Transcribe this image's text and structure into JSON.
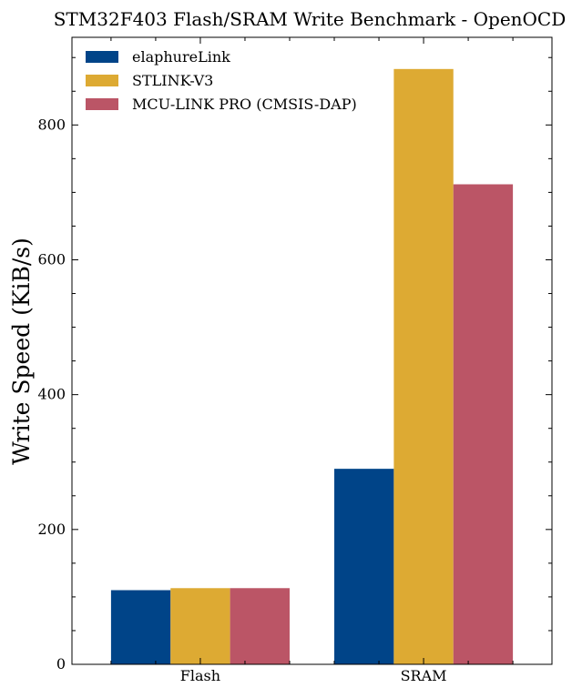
{
  "chart_data": {
    "type": "bar",
    "title": "STM32F403 Flash/SRAM Write Benchmark - OpenOCD",
    "xlabel": "",
    "ylabel": "Write Speed (KiB/s)",
    "categories": [
      "Flash",
      "SRAM"
    ],
    "series": [
      {
        "name": "elaphureLink",
        "color": "#004488",
        "values": [
          110,
          290
        ]
      },
      {
        "name": "STLINK-V3",
        "color": "#DDAA33",
        "values": [
          113,
          883
        ]
      },
      {
        "name": "MCU-LINK PRO (CMSIS-DAP)",
        "color": "#BB5566",
        "values": [
          113,
          712
        ]
      }
    ],
    "ylim": [
      0,
      930
    ],
    "yticks": [
      0,
      200,
      400,
      600,
      800
    ],
    "grid": false,
    "legend": "top-left"
  }
}
